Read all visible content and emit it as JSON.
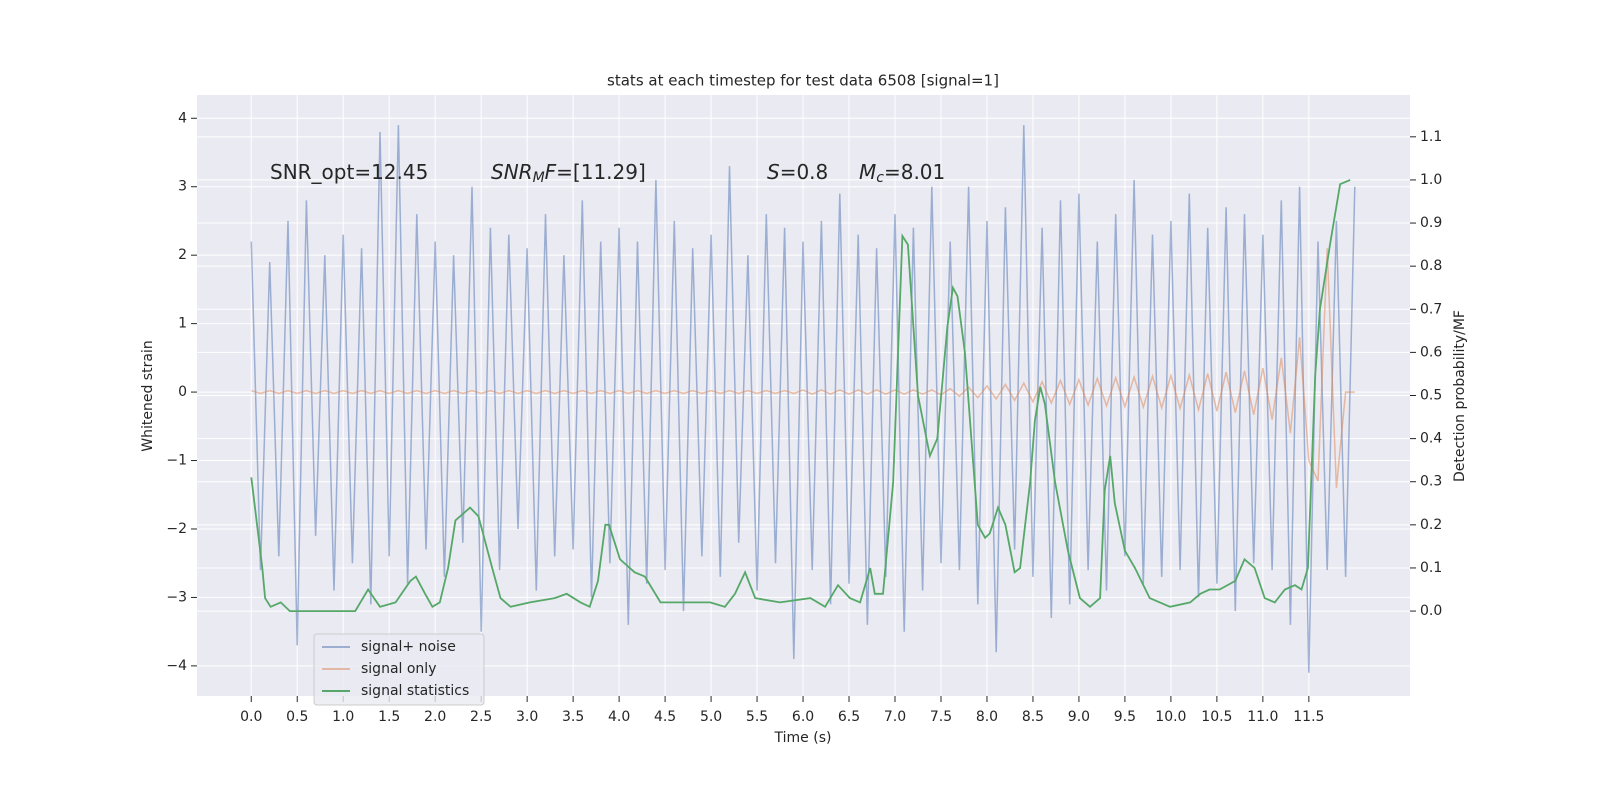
{
  "chart_data": {
    "type": "line",
    "title": "stats at each timestep for test data 6508 [signal=1]",
    "xlabel": "Time (s)",
    "ylabel": "Whitened strain",
    "y2label": "Detection probability/MF",
    "annotations": [
      {
        "parts": [
          {
            "text": "SNR_opt=12.45",
            "style": "normal"
          }
        ]
      },
      {
        "parts": [
          {
            "text": "SNR",
            "style": "italic"
          },
          {
            "text": "M",
            "style": "sub"
          },
          {
            "text": "F",
            "style": "italic"
          },
          {
            "text": "=[11.29]",
            "style": "normal"
          }
        ]
      },
      {
        "parts": [
          {
            "text": "S",
            "style": "italic"
          },
          {
            "text": "=0.8",
            "style": "normal"
          }
        ]
      },
      {
        "parts": [
          {
            "text": "M",
            "style": "italic"
          },
          {
            "text": "c",
            "style": "sub"
          },
          {
            "text": "=8.01",
            "style": "normal"
          }
        ]
      }
    ],
    "xlim": [
      -0.59,
      12.6
    ],
    "ylim": [
      -4.44,
      4.34
    ],
    "y2lim": [
      -0.197,
      1.197
    ],
    "xticks": [
      {
        "value": 0,
        "label": "0.0"
      },
      0.5,
      {
        "value": 1,
        "label": "1.0"
      },
      1.5,
      {
        "value": 2,
        "label": "2.0"
      },
      2.5,
      {
        "value": 3,
        "label": "3.0"
      },
      3.5,
      {
        "value": 4,
        "label": "4.0"
      },
      4.5,
      {
        "value": 5,
        "label": "5.0"
      },
      5.5,
      {
        "value": 6,
        "label": "6.0"
      },
      6.5,
      {
        "value": 7,
        "label": "7.0"
      },
      7.5,
      {
        "value": 8,
        "label": "8.0"
      },
      8.5,
      {
        "value": 9,
        "label": "9.0"
      },
      9.5,
      {
        "value": 10,
        "label": "10.0"
      },
      10.5,
      {
        "value": 11,
        "label": "11.0"
      },
      11.5
    ],
    "yticks": [
      {
        "value": -4,
        "label": "−4"
      },
      {
        "value": -3,
        "label": "−3"
      },
      {
        "value": -2,
        "label": "−2"
      },
      {
        "value": -1,
        "label": "−1"
      },
      0,
      1,
      2,
      3,
      4
    ],
    "y2ticks": [
      {
        "value": 0,
        "label": "0.0"
      },
      0.1,
      0.2,
      0.3,
      0.4,
      0.5,
      0.6,
      0.7,
      0.8,
      0.9,
      {
        "value": 1,
        "label": "1.0"
      },
      1.1
    ],
    "grid": true,
    "legend": "lower left",
    "x": [
      0,
      0.1,
      0.2,
      0.3,
      0.4,
      0.5,
      0.6,
      0.7,
      0.8,
      0.9,
      1,
      1.1,
      1.2,
      1.3,
      1.4,
      1.5,
      1.6,
      1.7,
      1.8,
      1.9,
      2,
      2.1,
      2.2,
      2.3,
      2.4,
      2.5,
      2.6,
      2.7,
      2.8,
      2.9,
      3,
      3.1,
      3.2,
      3.3,
      3.4,
      3.5,
      3.6,
      3.7,
      3.8,
      3.9,
      4,
      4.1,
      4.2,
      4.3,
      4.4,
      4.5,
      4.6,
      4.7,
      4.8,
      4.9,
      5,
      5.1,
      5.2,
      5.3,
      5.4,
      5.5,
      5.6,
      5.7,
      5.8,
      5.9,
      6,
      6.1,
      6.2,
      6.3,
      6.4,
      6.5,
      6.6,
      6.7,
      6.8,
      6.9,
      7,
      7.1,
      7.2,
      7.3,
      7.4,
      7.5,
      7.6,
      7.7,
      7.8,
      7.9,
      8,
      8.1,
      8.2,
      8.3,
      8.4,
      8.5,
      8.6,
      8.7,
      8.8,
      8.9,
      9,
      9.1,
      9.2,
      9.3,
      9.4,
      9.5,
      9.6,
      9.7,
      9.8,
      9.9,
      10,
      10.1,
      10.2,
      10.3,
      10.4,
      10.5,
      10.6,
      10.7,
      10.8,
      10.9,
      11,
      11.1,
      11.2,
      11.3,
      11.4,
      11.5,
      11.6,
      11.7,
      11.8,
      11.9,
      12
    ],
    "series": [
      {
        "name": "signal+ noise",
        "color": "#4c72b0",
        "alpha": 0.5,
        "values": [
          2.2,
          -2.6,
          1.9,
          -2.4,
          2.5,
          -3.7,
          2.8,
          -2.1,
          2.0,
          -2.9,
          2.3,
          -2.5,
          2.1,
          -3.1,
          3.8,
          -2.4,
          3.9,
          -2.8,
          2.6,
          -2.3,
          2.2,
          -2.7,
          2.0,
          -2.2,
          3.0,
          -3.5,
          2.4,
          -2.6,
          2.3,
          -2.0,
          2.1,
          -2.9,
          2.6,
          -2.4,
          2.0,
          -2.3,
          2.8,
          -3.0,
          2.2,
          -2.5,
          2.4,
          -3.4,
          2.2,
          -2.8,
          3.1,
          -2.6,
          2.5,
          -3.2,
          2.1,
          -2.4,
          2.3,
          -2.7,
          3.3,
          -2.2,
          2.0,
          -2.9,
          2.6,
          -2.5,
          2.4,
          -3.9,
          2.2,
          -2.6,
          2.5,
          -3.1,
          2.9,
          -2.8,
          2.3,
          -3.4,
          2.1,
          -2.7,
          2.6,
          -3.5,
          2.4,
          -2.9,
          3.0,
          -2.5,
          2.2,
          -2.6,
          3.0,
          -3.1,
          2.5,
          -3.8,
          2.7,
          -2.3,
          3.9,
          -2.7,
          2.4,
          -3.3,
          2.8,
          -3.1,
          2.9,
          -2.6,
          2.2,
          -2.9,
          2.6,
          -2.4,
          3.1,
          -2.8,
          2.3,
          -2.7,
          2.5,
          -2.6,
          2.9,
          -3.0,
          2.4,
          -2.8,
          2.7,
          -3.2,
          2.6,
          -2.5,
          2.3,
          -2.6,
          2.8,
          -3.4,
          3.0,
          -4.1,
          2.2,
          -2.6,
          2.5,
          -2.7,
          3.0
        ]
      },
      {
        "name": "signal only",
        "color": "#dd8452",
        "alpha": 0.5,
        "values": [
          0.02,
          -0.02,
          0.02,
          -0.02,
          0.02,
          -0.02,
          0.02,
          -0.02,
          0.02,
          -0.02,
          0.02,
          -0.02,
          0.02,
          -0.02,
          0.02,
          -0.02,
          0.02,
          -0.02,
          0.02,
          -0.02,
          0.02,
          -0.02,
          0.02,
          -0.02,
          0.02,
          -0.02,
          0.02,
          -0.02,
          0.02,
          -0.02,
          0.02,
          -0.02,
          0.02,
          -0.02,
          0.02,
          -0.02,
          0.02,
          -0.02,
          0.02,
          -0.02,
          0.02,
          -0.02,
          0.02,
          -0.02,
          0.02,
          -0.02,
          0.02,
          -0.02,
          0.02,
          -0.02,
          0.02,
          -0.02,
          0.02,
          -0.02,
          0.02,
          -0.02,
          0.02,
          -0.02,
          0.02,
          -0.02,
          0.03,
          -0.03,
          0.03,
          -0.03,
          0.03,
          -0.03,
          0.03,
          -0.03,
          0.03,
          -0.03,
          0.03,
          -0.03,
          0.03,
          -0.03,
          0.03,
          -0.04,
          0.05,
          -0.06,
          0.07,
          -0.08,
          0.09,
          -0.1,
          0.11,
          -0.12,
          0.13,
          -0.14,
          0.15,
          -0.16,
          0.17,
          -0.18,
          0.18,
          -0.19,
          0.2,
          -0.2,
          0.21,
          -0.21,
          0.22,
          -0.22,
          0.23,
          -0.23,
          0.24,
          -0.24,
          0.25,
          -0.26,
          0.27,
          -0.28,
          0.29,
          -0.3,
          0.31,
          -0.33,
          0.35,
          -0.4,
          0.5,
          -0.6,
          0.8,
          -1.0,
          -1.3,
          2.1,
          -1.4,
          0,
          0
        ]
      },
      {
        "name": "signal statistics",
        "color": "#55a868",
        "axis": "y2",
        "x": [
          0,
          0.12,
          0.15,
          0.21,
          0.32,
          0.42,
          0.97,
          1.13,
          1.27,
          1.4,
          1.57,
          1.73,
          1.79,
          1.89,
          1.97,
          2.05,
          2.14,
          2.22,
          2.38,
          2.47,
          2.62,
          2.71,
          2.82,
          3.03,
          3.3,
          3.43,
          3.58,
          3.68,
          3.77,
          3.85,
          3.89,
          4.01,
          4.17,
          4.28,
          4.45,
          4.66,
          4.99,
          5.15,
          5.26,
          5.37,
          5.48,
          5.75,
          6.08,
          6.24,
          6.38,
          6.51,
          6.62,
          6.73,
          6.78,
          6.87,
          6.98,
          7.08,
          7.14,
          7.25,
          7.38,
          7.46,
          7.57,
          7.63,
          7.68,
          7.76,
          7.9,
          7.98,
          8.03,
          8.12,
          8.2,
          8.3,
          8.36,
          8.47,
          8.52,
          8.58,
          8.63,
          8.74,
          8.88,
          9.01,
          9.12,
          9.23,
          9.28,
          9.34,
          9.39,
          9.5,
          9.61,
          9.77,
          9.99,
          10.21,
          10.32,
          10.42,
          10.53,
          10.7,
          10.8,
          10.91,
          11.02,
          11.13,
          11.24,
          11.35,
          11.42,
          11.49,
          11.57,
          11.62,
          11.73,
          11.84,
          11.95
        ],
        "values": [
          0.31,
          0.1,
          0.03,
          0.01,
          0.02,
          0,
          0,
          0,
          0.05,
          0.01,
          0.02,
          0.07,
          0.08,
          0.04,
          0.01,
          0.02,
          0.1,
          0.21,
          0.24,
          0.22,
          0.1,
          0.03,
          0.01,
          0.02,
          0.03,
          0.04,
          0.02,
          0.01,
          0.07,
          0.2,
          0.2,
          0.12,
          0.09,
          0.08,
          0.02,
          0.02,
          0.02,
          0.01,
          0.04,
          0.09,
          0.03,
          0.02,
          0.03,
          0.01,
          0.06,
          0.03,
          0.02,
          0.1,
          0.04,
          0.04,
          0.3,
          0.87,
          0.85,
          0.5,
          0.36,
          0.4,
          0.66,
          0.75,
          0.73,
          0.6,
          0.2,
          0.17,
          0.18,
          0.24,
          0.2,
          0.09,
          0.1,
          0.3,
          0.44,
          0.52,
          0.48,
          0.3,
          0.14,
          0.03,
          0.01,
          0.03,
          0.28,
          0.36,
          0.25,
          0.14,
          0.1,
          0.03,
          0.01,
          0.02,
          0.04,
          0.05,
          0.05,
          0.07,
          0.12,
          0.1,
          0.03,
          0.02,
          0.05,
          0.06,
          0.05,
          0.1,
          0.55,
          0.7,
          0.85,
          0.99,
          1.0
        ]
      }
    ]
  }
}
